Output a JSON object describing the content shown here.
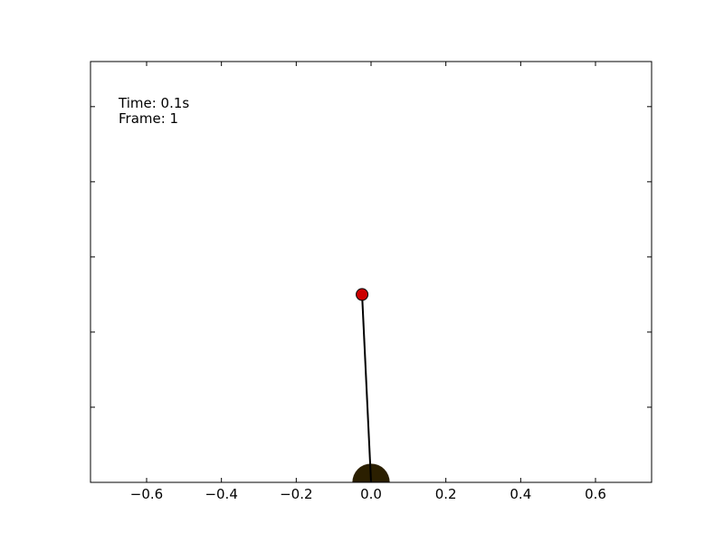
{
  "info": {
    "time_text": "Time: 0.1s",
    "frame_text": "Frame: 1"
  },
  "chart_data": {
    "type": "scatter",
    "title": "",
    "xlabel": "",
    "ylabel": "",
    "xlim": [
      -0.75,
      0.75
    ],
    "ylim": [
      0,
      1.12
    ],
    "x_ticks": [
      -0.6,
      -0.4,
      -0.2,
      0.0,
      0.2,
      0.4,
      0.6
    ],
    "x_tick_labels": [
      "−0.6",
      "−0.4",
      "−0.2",
      "0.0",
      "0.2",
      "0.4",
      "0.6"
    ],
    "y_ticks": [
      0.2,
      0.4,
      0.6,
      0.8,
      1.0
    ],
    "y_tick_labels_shown": false,
    "grid": false,
    "pendulum": {
      "pivot": {
        "x": 0.0,
        "y": 0.0
      },
      "bob": {
        "x": -0.024,
        "y": 0.5
      },
      "rod_color": "#000000",
      "bob_color": "#cc0000",
      "base_radius": 0.05,
      "base_color": "#2b1f00"
    }
  }
}
